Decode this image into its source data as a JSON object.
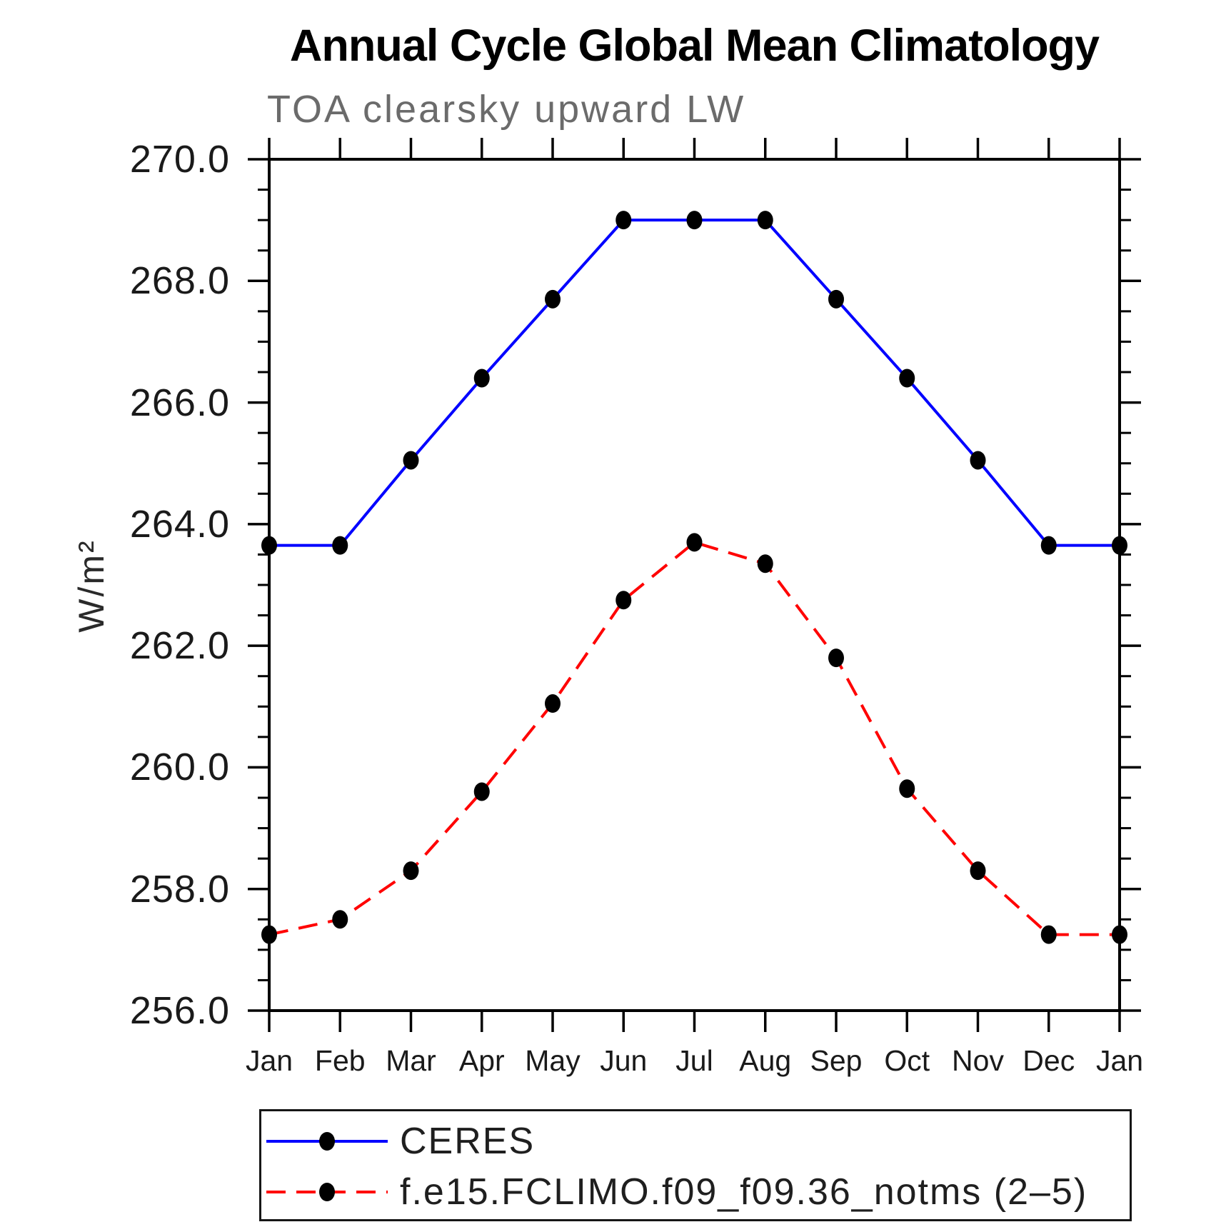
{
  "title": "Annual Cycle Global Mean Climatology",
  "subtitle": "TOA clearsky upward LW",
  "chart_data": {
    "type": "line",
    "title": "Annual Cycle Global Mean Climatology",
    "subtitle": "TOA clearsky upward LW",
    "ylabel": "W/m²",
    "xlabel": "",
    "x_categories": [
      "Jan",
      "Feb",
      "Mar",
      "Apr",
      "May",
      "Jun",
      "Jul",
      "Aug",
      "Sep",
      "Oct",
      "Nov",
      "Dec",
      "Jan"
    ],
    "ylim": [
      256.0,
      270.0
    ],
    "y_major_tick_values": [
      270,
      268,
      266,
      264,
      262,
      260,
      258,
      256
    ],
    "y_major_tick_labels": [
      "270.0",
      "268.0",
      "266.0",
      "264.0",
      "262.0",
      "260.0",
      "258.0",
      "256.0"
    ],
    "y_minor_step": 0.5,
    "grid": "off",
    "axis_color": "#000000",
    "legend_position": "bottom-left",
    "series": [
      {
        "name": "CERES",
        "color": "#0000ff",
        "line_style": "solid",
        "marker": "filled-black-circle",
        "values": [
          263.65,
          263.65,
          265.05,
          266.4,
          267.7,
          269.0,
          269.0,
          269.0,
          267.7,
          266.4,
          265.05,
          263.65,
          263.65
        ]
      },
      {
        "name": "f.e15.FCLIMO.f09_f09.36_notms (2–5)",
        "color": "#ff0000",
        "line_style": "dashed",
        "marker": "filled-black-circle",
        "values": [
          257.25,
          257.5,
          258.3,
          259.6,
          261.05,
          262.75,
          263.7,
          263.35,
          261.8,
          259.65,
          258.3,
          257.25,
          257.25
        ]
      }
    ]
  }
}
